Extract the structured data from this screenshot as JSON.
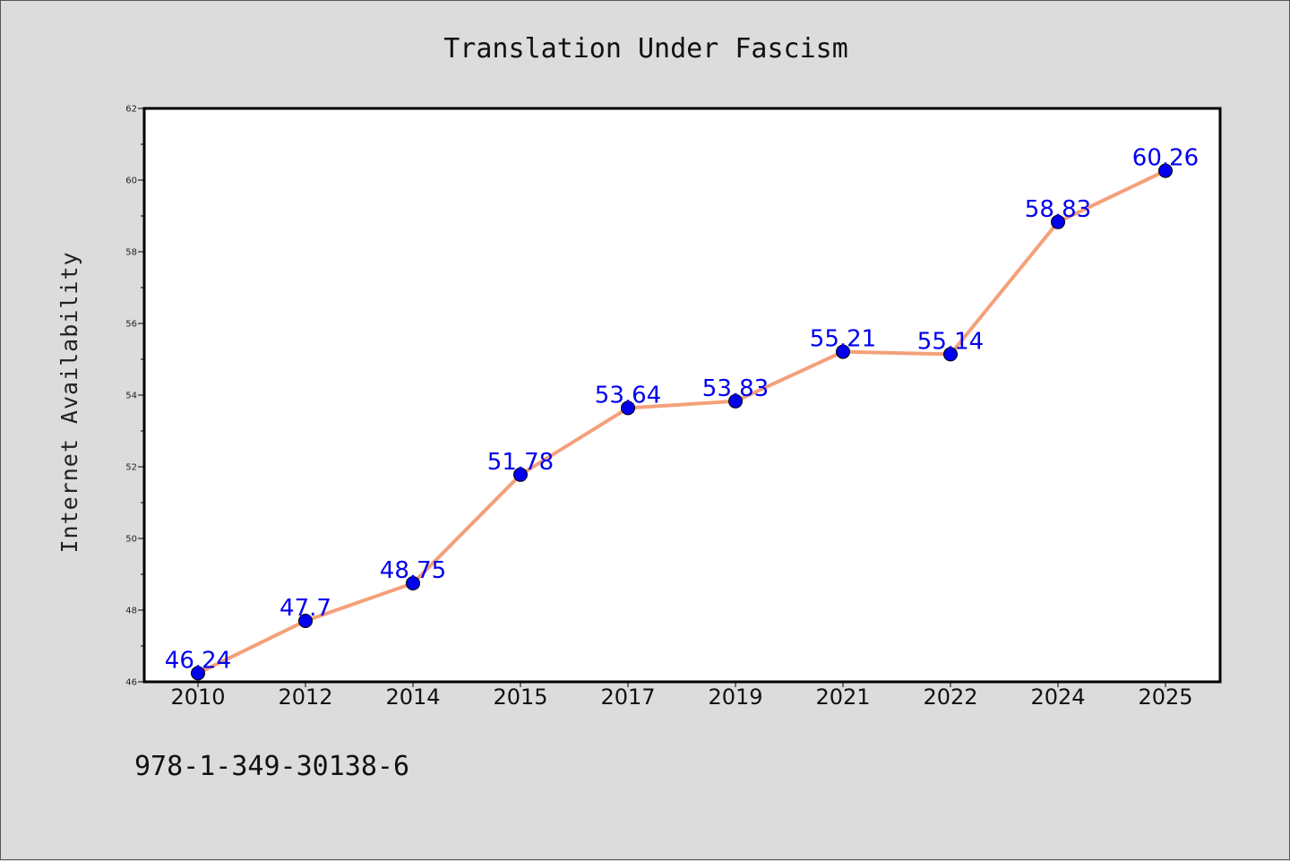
{
  "chart_data": {
    "type": "line",
    "title": "Translation Under Fascism",
    "xlabel": "",
    "ylabel": "Internet Availability",
    "categories": [
      "2010",
      "2012",
      "2014",
      "2015",
      "2017",
      "2019",
      "2021",
      "2022",
      "2024",
      "2025"
    ],
    "values": [
      46.24,
      47.7,
      48.75,
      51.78,
      53.64,
      53.83,
      55.21,
      55.14,
      58.83,
      60.26
    ],
    "data_labels": [
      "46.24",
      "47.7",
      "48.75",
      "51.78",
      "53.64",
      "53.83",
      "55.21",
      "55.14",
      "58.83",
      "60.26"
    ],
    "ylim": [
      46,
      62
    ],
    "yticks": [
      "46",
      "48",
      "50",
      "52",
      "54",
      "56",
      "58",
      "60",
      "62"
    ],
    "grid": false,
    "line_color": "#f4a07a",
    "marker_color": "#0000ee",
    "label_color": "#0000ee"
  },
  "footer_text": "978-1-349-30138-6"
}
